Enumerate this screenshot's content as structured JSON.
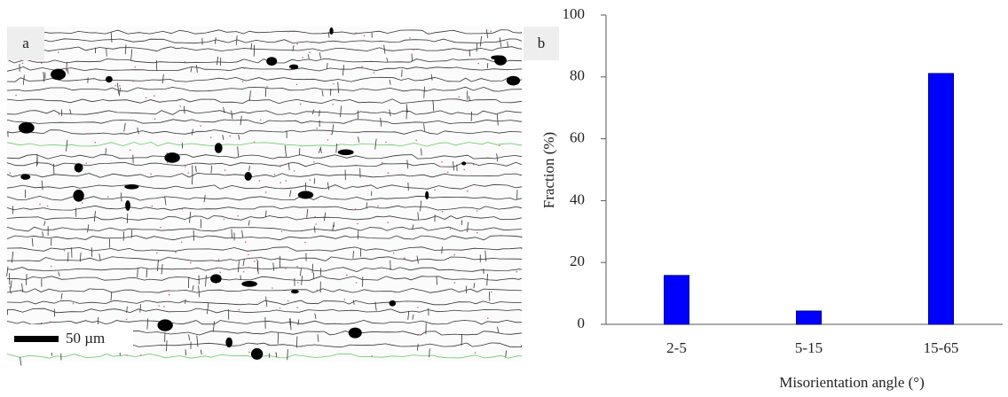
{
  "panels": {
    "a": "a",
    "b": "b"
  },
  "scale_bar": "50 µm",
  "chart_data": {
    "type": "bar",
    "x_label": "Misorientation angle (°)",
    "y_label": "Fraction (%)",
    "categories": [
      "2-5",
      "5-15",
      "15-65"
    ],
    "values": [
      15.8,
      4.3,
      81.1
    ],
    "color": "#0000ff",
    "ylim": [
      0,
      100
    ],
    "yticks": [
      0,
      20,
      40,
      60,
      80,
      100
    ]
  }
}
